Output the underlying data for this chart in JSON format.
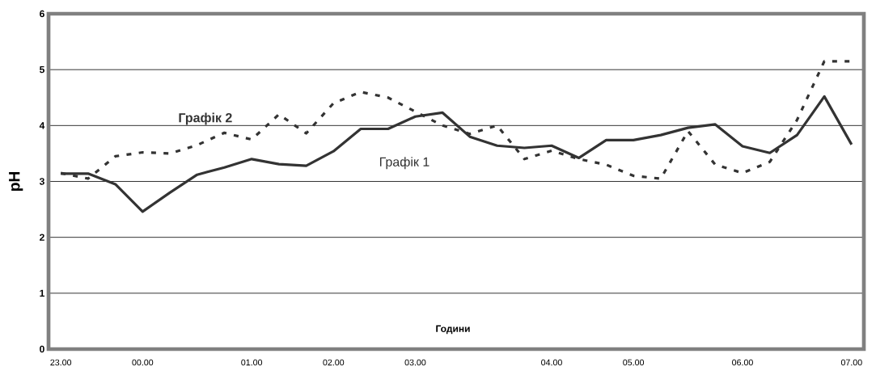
{
  "chart_data": {
    "type": "line",
    "xlabel": "Години",
    "ylabel": "pH",
    "categories": [
      "23.00",
      null,
      null,
      "00.00",
      null,
      null,
      null,
      "01.00",
      null,
      null,
      "02.00",
      null,
      null,
      "03.00",
      null,
      null,
      null,
      null,
      "04.00",
      null,
      null,
      "05.00",
      null,
      null,
      null,
      "06.00",
      null,
      null,
      null,
      "07.00"
    ],
    "series": [
      {
        "name": "Графік 1",
        "color": "#333333",
        "line_style": "solid",
        "values": [
          3.14,
          3.14,
          2.95,
          2.46,
          2.8,
          3.12,
          3.25,
          3.4,
          3.31,
          3.28,
          3.54,
          3.94,
          3.94,
          4.16,
          4.23,
          3.8,
          3.64,
          3.6,
          3.64,
          3.42,
          3.74,
          3.74,
          3.83,
          3.96,
          4.02,
          3.63,
          3.51,
          3.83,
          4.52,
          3.66
        ]
      },
      {
        "name": "Графік 2",
        "color": "#333333",
        "line_style": "dashed",
        "values": [
          3.15,
          3.05,
          3.45,
          3.52,
          3.5,
          3.65,
          3.87,
          3.75,
          4.2,
          3.86,
          4.4,
          4.6,
          4.5,
          4.25,
          4.0,
          3.85,
          4.0,
          3.4,
          3.55,
          3.4,
          3.3,
          3.1,
          3.05,
          3.9,
          3.3,
          3.15,
          3.35,
          4.1,
          5.15,
          5.15
        ]
      }
    ],
    "ylim": [
      0,
      6
    ],
    "yticks": [
      0,
      1,
      2,
      3,
      4,
      5,
      6
    ],
    "grid": "y"
  }
}
